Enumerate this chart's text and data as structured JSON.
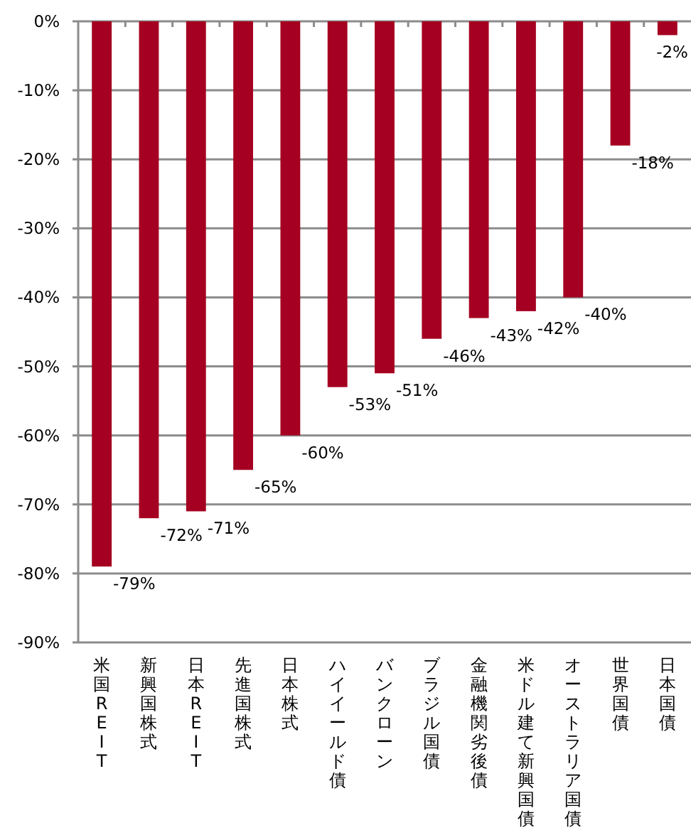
{
  "chart_data": {
    "type": "bar",
    "categories": [
      "米国REIT",
      "新興国株式",
      "日本REIT",
      "先進国株式",
      "日本株式",
      "ハイイールド債",
      "バンクローン",
      "ブラジル国債",
      "金融機関劣後債",
      "米ドル建て新興国債",
      "オーストラリア国債",
      "世界国債",
      "日本国債"
    ],
    "series": [
      {
        "color": "#a50021",
        "values": [
          -79,
          -72,
          -71,
          -65,
          -60,
          -53,
          -51,
          -46,
          -43,
          -42,
          -40,
          -18,
          -2
        ]
      }
    ],
    "value_labels": [
      "-79%",
      "-72%",
      "-71%",
      "-65%",
      "-60%",
      "-53%",
      "-51%",
      "-46%",
      "-43%",
      "-42%",
      "-40%",
      "-18%",
      "-2%"
    ],
    "ylim": [
      -90,
      0
    ],
    "yticks": [
      {
        "value": 0,
        "label": "0%"
      },
      {
        "value": -10,
        "label": "-10%"
      },
      {
        "value": -20,
        "label": "-20%"
      },
      {
        "value": -30,
        "label": "-30%"
      },
      {
        "value": -40,
        "label": "-40%"
      },
      {
        "value": -50,
        "label": "-50%"
      },
      {
        "value": -60,
        "label": "-60%"
      },
      {
        "value": -70,
        "label": "-70%"
      },
      {
        "value": -80,
        "label": "-80%"
      },
      {
        "value": -90,
        "label": "-90%"
      }
    ],
    "grid": "y"
  }
}
